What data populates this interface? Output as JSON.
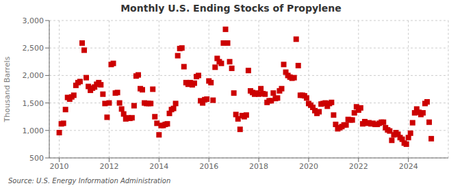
{
  "chart_data": {
    "type": "scatter",
    "title": "Monthly U.S. Ending Stocks of Propylene",
    "ylabel": "Thousand Barrels",
    "annotations": [
      "Source: U.S. Energy Information Administration"
    ],
    "color": "#cc0000",
    "marker": "square",
    "grid": true,
    "xlim": [
      2009.6,
      2025.6
    ],
    "xticks": [
      2010,
      2012,
      2014,
      2016,
      2018,
      2020,
      2022,
      2024
    ],
    "ylim": [
      500,
      3000
    ],
    "yticks": [
      500,
      {
        "value": 1000,
        "label": "1,000"
      },
      {
        "value": 1500,
        "label": "1,500"
      },
      {
        "value": 2000,
        "label": "2,000"
      },
      {
        "value": 2500,
        "label": "2,500"
      },
      {
        "value": 3000,
        "label": "3,000"
      }
    ],
    "x": [
      2010.0,
      2010.083,
      2010.167,
      2010.25,
      2010.333,
      2010.417,
      2010.5,
      2010.583,
      2010.667,
      2010.75,
      2010.833,
      2010.917,
      2011.0,
      2011.083,
      2011.167,
      2011.25,
      2011.333,
      2011.417,
      2011.5,
      2011.583,
      2011.667,
      2011.75,
      2011.833,
      2011.917,
      2012.0,
      2012.083,
      2012.167,
      2012.25,
      2012.333,
      2012.417,
      2012.5,
      2012.583,
      2012.667,
      2012.75,
      2012.833,
      2012.917,
      2013.0,
      2013.083,
      2013.167,
      2013.25,
      2013.333,
      2013.417,
      2013.5,
      2013.583,
      2013.667,
      2013.75,
      2013.833,
      2013.917,
      2014.0,
      2014.083,
      2014.167,
      2014.25,
      2014.333,
      2014.417,
      2014.5,
      2014.583,
      2014.667,
      2014.75,
      2014.833,
      2014.917,
      2015.0,
      2015.083,
      2015.167,
      2015.25,
      2015.333,
      2015.417,
      2015.5,
      2015.583,
      2015.667,
      2015.75,
      2015.833,
      2015.917,
      2016.0,
      2016.083,
      2016.167,
      2016.25,
      2016.333,
      2016.417,
      2016.5,
      2016.583,
      2016.667,
      2016.75,
      2016.833,
      2016.917,
      2017.0,
      2017.083,
      2017.167,
      2017.25,
      2017.333,
      2017.417,
      2017.5,
      2017.583,
      2017.667,
      2017.75,
      2017.833,
      2017.917,
      2018.0,
      2018.083,
      2018.167,
      2018.25,
      2018.333,
      2018.417,
      2018.5,
      2018.583,
      2018.667,
      2018.75,
      2018.833,
      2018.917,
      2019.0,
      2019.083,
      2019.167,
      2019.25,
      2019.333,
      2019.417,
      2019.5,
      2019.583,
      2019.667,
      2019.75,
      2019.833,
      2019.917,
      2020.0,
      2020.083,
      2020.167,
      2020.25,
      2020.333,
      2020.417,
      2020.5,
      2020.583,
      2020.667,
      2020.75,
      2020.833,
      2020.917,
      2021.0,
      2021.083,
      2021.167,
      2021.25,
      2021.333,
      2021.417,
      2021.5,
      2021.583,
      2021.667,
      2021.75,
      2021.833,
      2021.917,
      2022.0,
      2022.083,
      2022.167,
      2022.25,
      2022.333,
      2022.417,
      2022.5,
      2022.583,
      2022.667,
      2022.75,
      2022.833,
      2022.917,
      2023.0,
      2023.083,
      2023.167,
      2023.25,
      2023.333,
      2023.417,
      2023.5,
      2023.583,
      2023.667,
      2023.75,
      2023.833,
      2023.917,
      2024.0,
      2024.083,
      2024.167,
      2024.25,
      2024.333,
      2024.417,
      2024.5,
      2024.583,
      2024.667,
      2024.75,
      2024.833,
      2024.917
    ],
    "values": [
      960,
      1120,
      1130,
      1380,
      1600,
      1570,
      1610,
      1640,
      1820,
      1870,
      1890,
      2590,
      2460,
      1960,
      1800,
      1730,
      1770,
      1790,
      1840,
      1870,
      1830,
      1660,
      1490,
      1240,
      1500,
      2200,
      2220,
      1680,
      1690,
      1500,
      1390,
      1300,
      1210,
      1230,
      1220,
      1230,
      1450,
      1990,
      2010,
      1760,
      1740,
      1500,
      1490,
      1490,
      1490,
      1750,
      1250,
      1130,
      920,
      1090,
      1090,
      1110,
      1120,
      1310,
      1380,
      1400,
      1490,
      2360,
      2490,
      2500,
      2160,
      1870,
      1840,
      1870,
      1830,
      1860,
      1980,
      2000,
      1540,
      1500,
      1560,
      1570,
      1900,
      1870,
      1550,
      2150,
      2310,
      2250,
      2220,
      2590,
      2840,
      2590,
      2250,
      2130,
      1680,
      1290,
      1210,
      1020,
      1270,
      1250,
      1280,
      2090,
      1720,
      1690,
      1660,
      1680,
      1660,
      1760,
      1670,
      1660,
      1510,
      1540,
      1540,
      1680,
      1580,
      1590,
      1720,
      1760,
      2200,
      2060,
      2000,
      1970,
      1950,
      1960,
      2660,
      2180,
      1640,
      1640,
      1630,
      1590,
      1490,
      1460,
      1420,
      1360,
      1310,
      1340,
      1480,
      1490,
      1500,
      1440,
      1490,
      1510,
      1280,
      1110,
      1030,
      1050,
      1070,
      1100,
      1100,
      1200,
      1190,
      1190,
      1320,
      1430,
      1370,
      1410,
      1120,
      1160,
      1130,
      1140,
      1120,
      1130,
      1110,
      1110,
      1130,
      1150,
      1150,
      1050,
      1010,
      990,
      820,
      920,
      960,
      930,
      870,
      840,
      770,
      750,
      870,
      950,
      1140,
      1320,
      1390,
      1330,
      1290,
      1320,
      1490,
      1520,
      1150,
      850
    ]
  }
}
